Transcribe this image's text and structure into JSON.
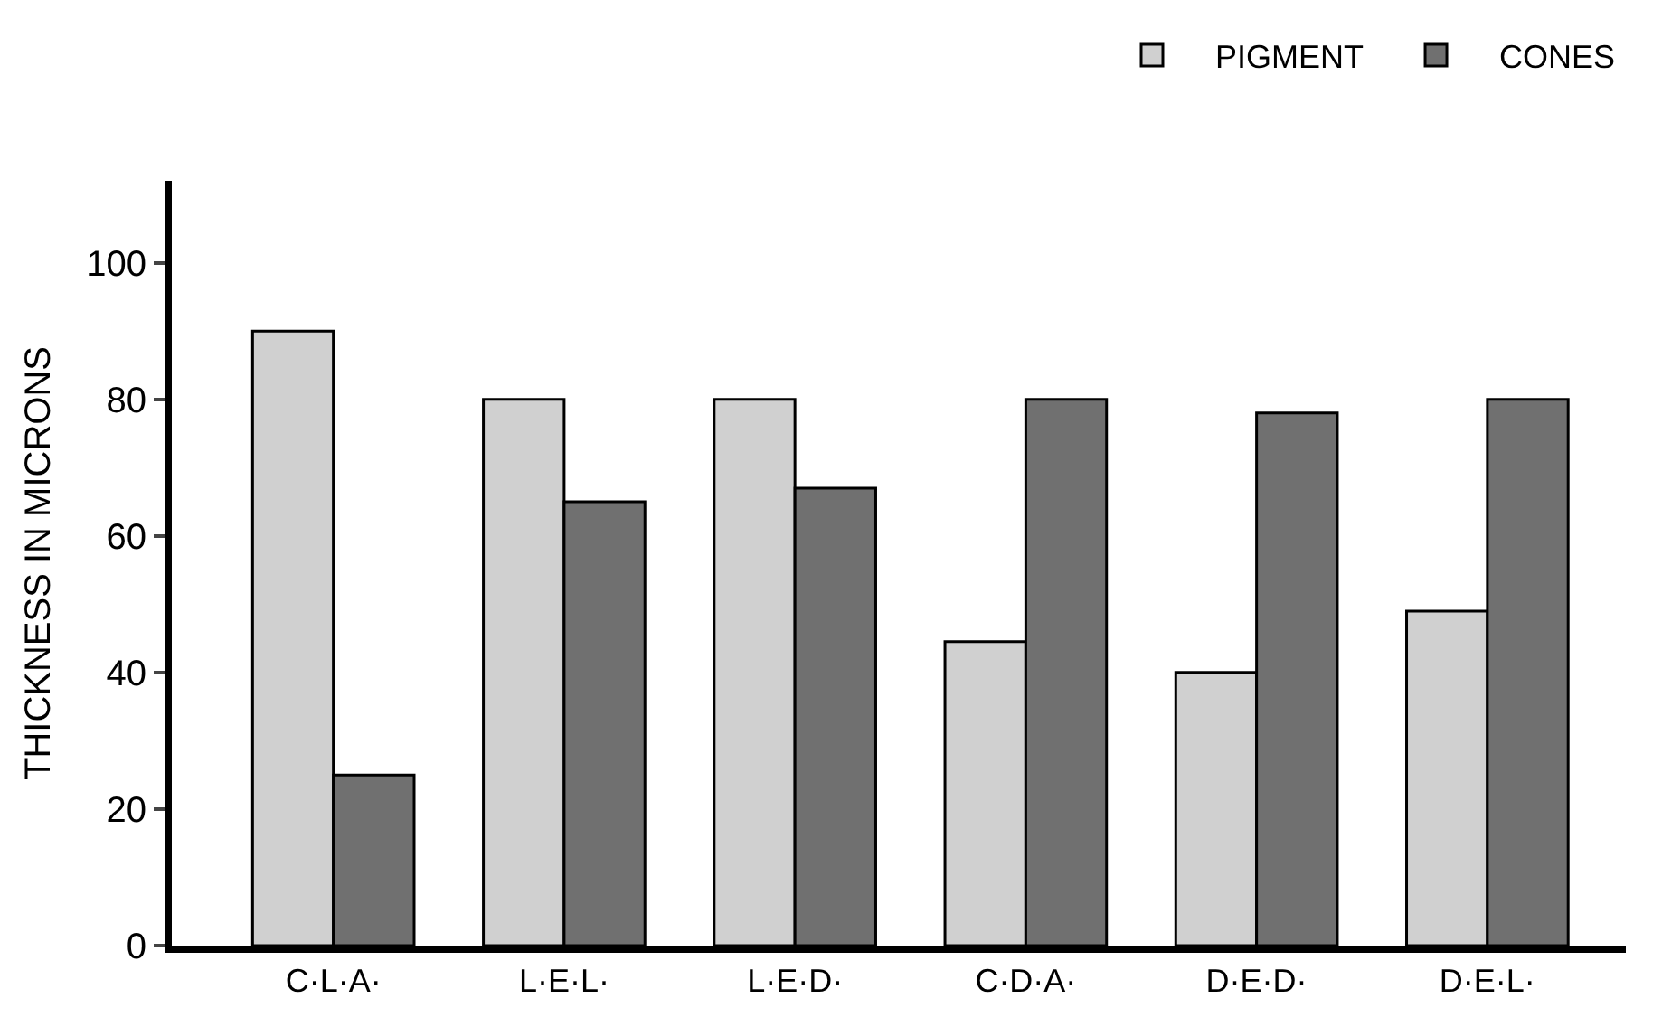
{
  "chart_data": {
    "type": "bar",
    "ylabel": "THICKNESS IN MICRONS",
    "categories": [
      "C·L·A·",
      "L·E·L·",
      "L·E·D·",
      "C·D·A·",
      "D·E·D·",
      "D·E·L·"
    ],
    "series": [
      {
        "name": "PIGMENT",
        "color": "#d0d0d0",
        "values": [
          90,
          80,
          80,
          44.5,
          40,
          49
        ]
      },
      {
        "name": "CONES",
        "color": "#707070",
        "values": [
          25,
          65,
          67,
          80,
          78,
          80
        ]
      }
    ],
    "ylim": [
      0,
      112
    ],
    "yticks": [
      0,
      20,
      40,
      60,
      80,
      100
    ],
    "legend": "top right"
  }
}
